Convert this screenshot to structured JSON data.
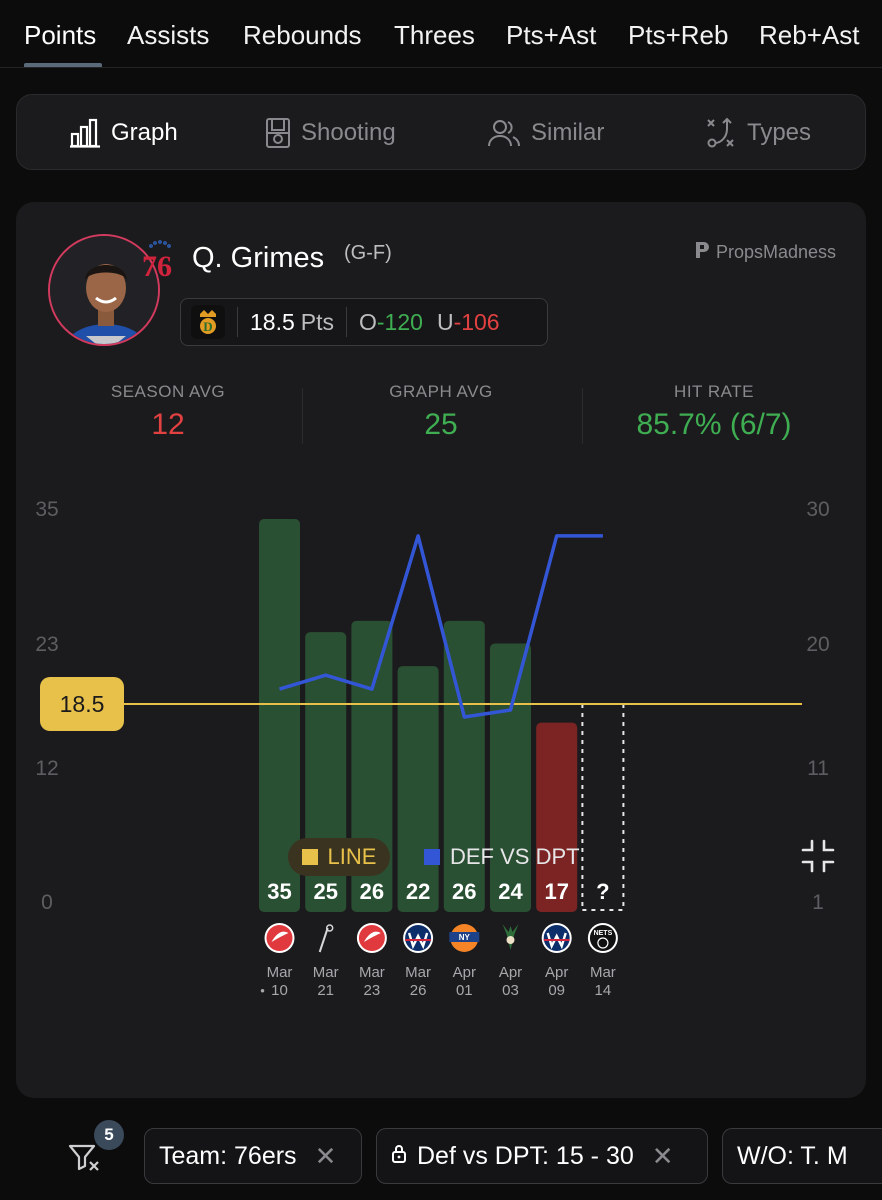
{
  "stat_tabs": [
    {
      "label": "Points",
      "active": true
    },
    {
      "label": "Assists"
    },
    {
      "label": "Rebounds"
    },
    {
      "label": "Threes"
    },
    {
      "label": "Pts+Ast"
    },
    {
      "label": "Pts+Reb"
    },
    {
      "label": "Reb+Ast"
    }
  ],
  "view_tabs": [
    {
      "label": "Graph",
      "icon": "bar-chart-icon",
      "active": true
    },
    {
      "label": "Shooting",
      "icon": "court-icon"
    },
    {
      "label": "Similar",
      "icon": "users-icon"
    },
    {
      "label": "Types",
      "icon": "play-diagram-icon"
    }
  ],
  "player": {
    "name": "Q. Grimes",
    "position": "(G-F)",
    "team_logo_text": "76"
  },
  "brand": "PropsMadness",
  "line": {
    "value": "18.5",
    "unit": "Pts",
    "over_label": "O",
    "over_odds": "-120",
    "under_label": "U",
    "under_odds": "-106"
  },
  "stats": {
    "season_avg_label": "SEASON AVG",
    "season_avg": "12",
    "graph_avg_label": "GRAPH AVG",
    "graph_avg": "25",
    "hit_rate_label": "HIT RATE",
    "hit_rate": "85.7% (6/7)"
  },
  "chart_data": {
    "type": "bar",
    "categories": [
      "Mar 10",
      "Mar 21",
      "Mar 23",
      "Mar 26",
      "Apr 01",
      "Apr 03",
      "Apr 09",
      "Mar 14"
    ],
    "values": [
      35,
      25,
      26,
      22,
      26,
      24,
      17,
      null
    ],
    "value_labels": [
      "35",
      "25",
      "26",
      "22",
      "26",
      "24",
      "17",
      "?"
    ],
    "month_labels": [
      "Mar",
      "Mar",
      "Mar",
      "Mar",
      "Apr",
      "Apr",
      "Apr",
      "Mar"
    ],
    "day_labels": [
      "10",
      "21",
      "23",
      "26",
      "01",
      "03",
      "09",
      "14"
    ],
    "first_day_dot": "•",
    "opponents": [
      "hawks-logo",
      "spurs-logo",
      "hawks-logo",
      "wizards-logo",
      "knicks-logo",
      "bucks-logo",
      "wizards-logo",
      "nets-logo"
    ],
    "left_axis_ticks": [
      "35",
      "23",
      "12",
      "0"
    ],
    "right_axis_ticks": [
      "30",
      "20",
      "11",
      "1"
    ],
    "ylim_left": [
      0,
      35
    ],
    "ylim_right": [
      1,
      30
    ],
    "line_value": 18.5,
    "line_label": "18.5",
    "def_vs_dpt": [
      17,
      18,
      17,
      28,
      15,
      15.5,
      28,
      28
    ],
    "colors": {
      "hit": "#2a5033",
      "miss": "#7c2424",
      "line": "#e8c14a",
      "def": "#3356d6"
    },
    "legend": [
      {
        "label": "LINE",
        "color": "#e8c14a"
      },
      {
        "label": "DEF VS DPT",
        "color": "#3356d6"
      }
    ]
  },
  "filters": {
    "count": "5",
    "chips": [
      {
        "label": "Team: 76ers",
        "locked": false
      },
      {
        "label": "Def vs DPT: 15 - 30",
        "locked": true
      },
      {
        "label": "W/O: T. M",
        "locked": false
      }
    ]
  }
}
